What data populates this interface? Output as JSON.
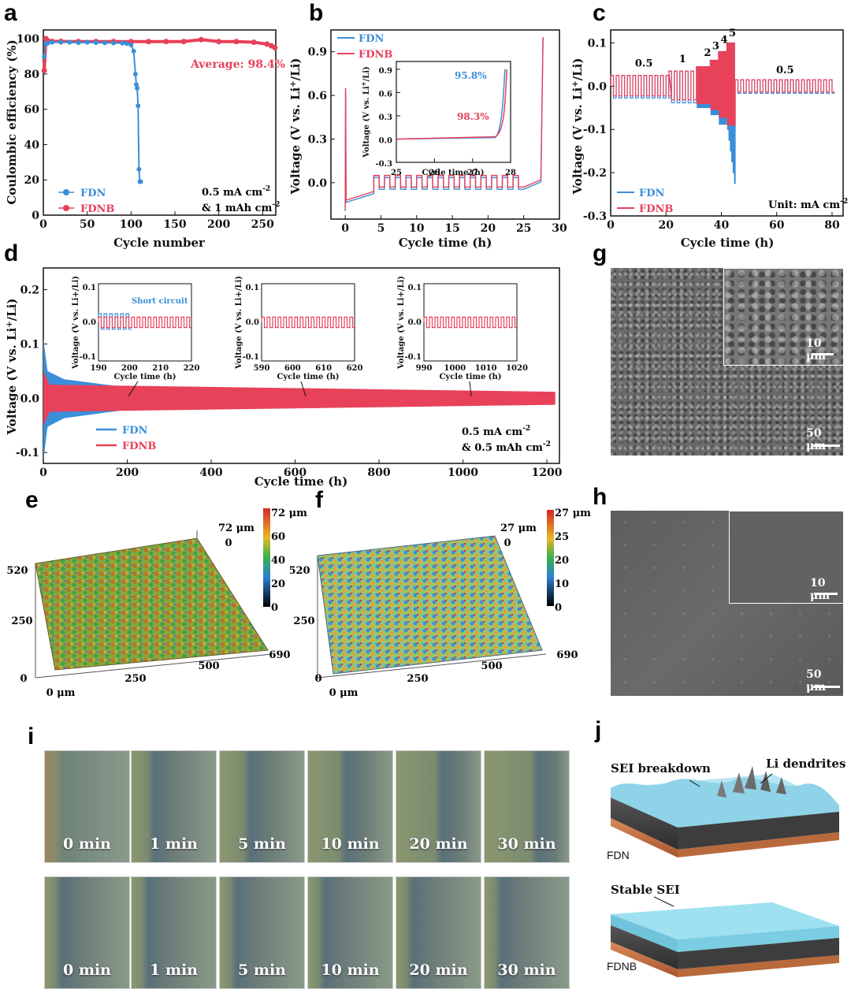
{
  "colors": {
    "fdn": "#3b8fd9",
    "fdnb": "#e8415a"
  },
  "panels": {
    "a": "a",
    "b": "b",
    "c": "c",
    "d": "d",
    "e": "e",
    "f": "f",
    "g": "g",
    "h": "h",
    "i": "i",
    "j": "j"
  },
  "chart_data": [
    {
      "id": "a",
      "type": "scatter",
      "xlabel": "Cycle number",
      "ylabel": "Coulombic efficiency (%)",
      "xlim": [
        0,
        265
      ],
      "ylim": [
        0,
        105
      ],
      "xticks": [
        0,
        50,
        100,
        150,
        200,
        250
      ],
      "yticks": [
        0,
        20,
        40,
        60,
        80,
        100
      ],
      "series": [
        {
          "name": "FDN",
          "x": [
            1,
            3,
            5,
            10,
            20,
            30,
            40,
            50,
            60,
            70,
            80,
            90,
            95,
            100,
            103,
            105,
            106,
            107,
            108,
            109,
            110,
            111
          ],
          "y": [
            90,
            97,
            97.5,
            98,
            98,
            98,
            97.8,
            98,
            97.8,
            97.7,
            97.6,
            97.5,
            97.3,
            96.5,
            93,
            80,
            74,
            72,
            62,
            26,
            19,
            19
          ]
        },
        {
          "name": "FDNB",
          "x": [
            1,
            3,
            5,
            10,
            20,
            40,
            60,
            80,
            100,
            120,
            140,
            160,
            180,
            200,
            220,
            240,
            255,
            260,
            264
          ],
          "y": [
            82,
            100,
            99,
            98.5,
            98.5,
            98.4,
            98.4,
            98.4,
            98.4,
            98.4,
            98.4,
            98.4,
            99.5,
            98.4,
            98.4,
            98,
            97,
            96,
            95
          ]
        }
      ],
      "annotations": {
        "average": "Average: 98.4%",
        "cond1": "0.5 mA cm",
        "cond2": "& 1 mAh cm"
      }
    },
    {
      "id": "b",
      "type": "line",
      "xlabel": "Cycle time (h)",
      "ylabel": "Voltage (V vs. Li+/Li)",
      "xlim": [
        -2,
        30
      ],
      "ylim": [
        -0.25,
        1.05
      ],
      "xticks": [
        0,
        5,
        10,
        15,
        20,
        25,
        30
      ],
      "yticks": [
        0.0,
        0.3,
        0.6,
        0.9
      ],
      "inset": {
        "xlabel": "Cycle time (h)",
        "ylabel": "Voltage (V vs. Li+/Li)",
        "xlim": [
          25,
          28
        ],
        "ylim": [
          -0.3,
          1.0
        ],
        "xticks": [
          25,
          26,
          27,
          28
        ],
        "yticks": [
          -0.3,
          0.0,
          0.3,
          0.6,
          0.9
        ],
        "label_fdn": "95.8%",
        "label_fdnb": "98.3%"
      }
    },
    {
      "id": "c",
      "type": "line",
      "xlabel": "Cycle time (h)",
      "ylabel": "Voltage (V vs. Li+/Li)",
      "xlim": [
        0,
        84
      ],
      "ylim": [
        -0.3,
        0.13
      ],
      "xticks": [
        0,
        20,
        40,
        60,
        80
      ],
      "yticks": [
        -0.3,
        -0.2,
        -0.1,
        0.0,
        0.1
      ],
      "rate_labels": [
        "0.5",
        "1",
        "2",
        "3",
        "4",
        "5",
        "0.5"
      ],
      "unit": "Unit: mA cm"
    },
    {
      "id": "d",
      "type": "line",
      "xlabel": "Cycle time (h)",
      "ylabel": "Voltage (V vs. Li+/Li)",
      "xlim": [
        0,
        1230
      ],
      "ylim": [
        -0.12,
        0.24
      ],
      "xticks": [
        0,
        200,
        400,
        600,
        800,
        1000,
        1200
      ],
      "yticks": [
        -0.1,
        0.0,
        0.1,
        0.2
      ],
      "cond1": "0.5 mA cm",
      "cond2": "& 0.5 mAh cm",
      "insets": [
        {
          "xticks": [
            190,
            200,
            210,
            220
          ],
          "note": "Short circuit"
        },
        {
          "xticks": [
            590,
            600,
            610,
            620
          ]
        },
        {
          "xticks": [
            990,
            1000,
            1010,
            1020
          ]
        }
      ],
      "inset_xlabel": "Cycle time (h)",
      "inset_ylabel": "Voltage (V vs. Li+/Li)",
      "inset_yticks": [
        -0.1,
        0.0,
        0.1
      ]
    },
    {
      "id": "e",
      "type": "heatmap",
      "colorbar_ticks": [
        "72 μm",
        "60",
        "40",
        "20",
        "0"
      ],
      "axis_labels": {
        "z": "72 μm",
        "zero": "0",
        "y1": "520",
        "y2": "250",
        "y0": "0",
        "x1": "250",
        "x2": "500",
        "x3": "690",
        "origin": "0 μm"
      }
    },
    {
      "id": "f",
      "type": "heatmap",
      "colorbar_ticks": [
        "27 μm",
        "25",
        "20",
        "10",
        "0"
      ],
      "axis_labels": {
        "z": "27 μm",
        "zero": "0",
        "y1": "520",
        "y2": "250",
        "y0": "0",
        "x1": "250",
        "x2": "500",
        "x3": "690",
        "origin": "0 μm"
      }
    }
  ],
  "sem": {
    "g_inset": "10 μm",
    "g_main": "50 μm",
    "h_inset": "10 μm",
    "h_main": "50 μm"
  },
  "photos": {
    "times": [
      "0 min",
      "1 min",
      "5 min",
      "10 min",
      "20 min",
      "30 min"
    ]
  },
  "schematic": {
    "sei_breakdown": "SEI breakdown",
    "li_dendrites": "Li dendrites",
    "fdn": "FDN",
    "stable_sei": "Stable SEI",
    "fdnb": "FDNB"
  },
  "legend": {
    "fdn": "FDN",
    "fdnb": "FDNB"
  }
}
